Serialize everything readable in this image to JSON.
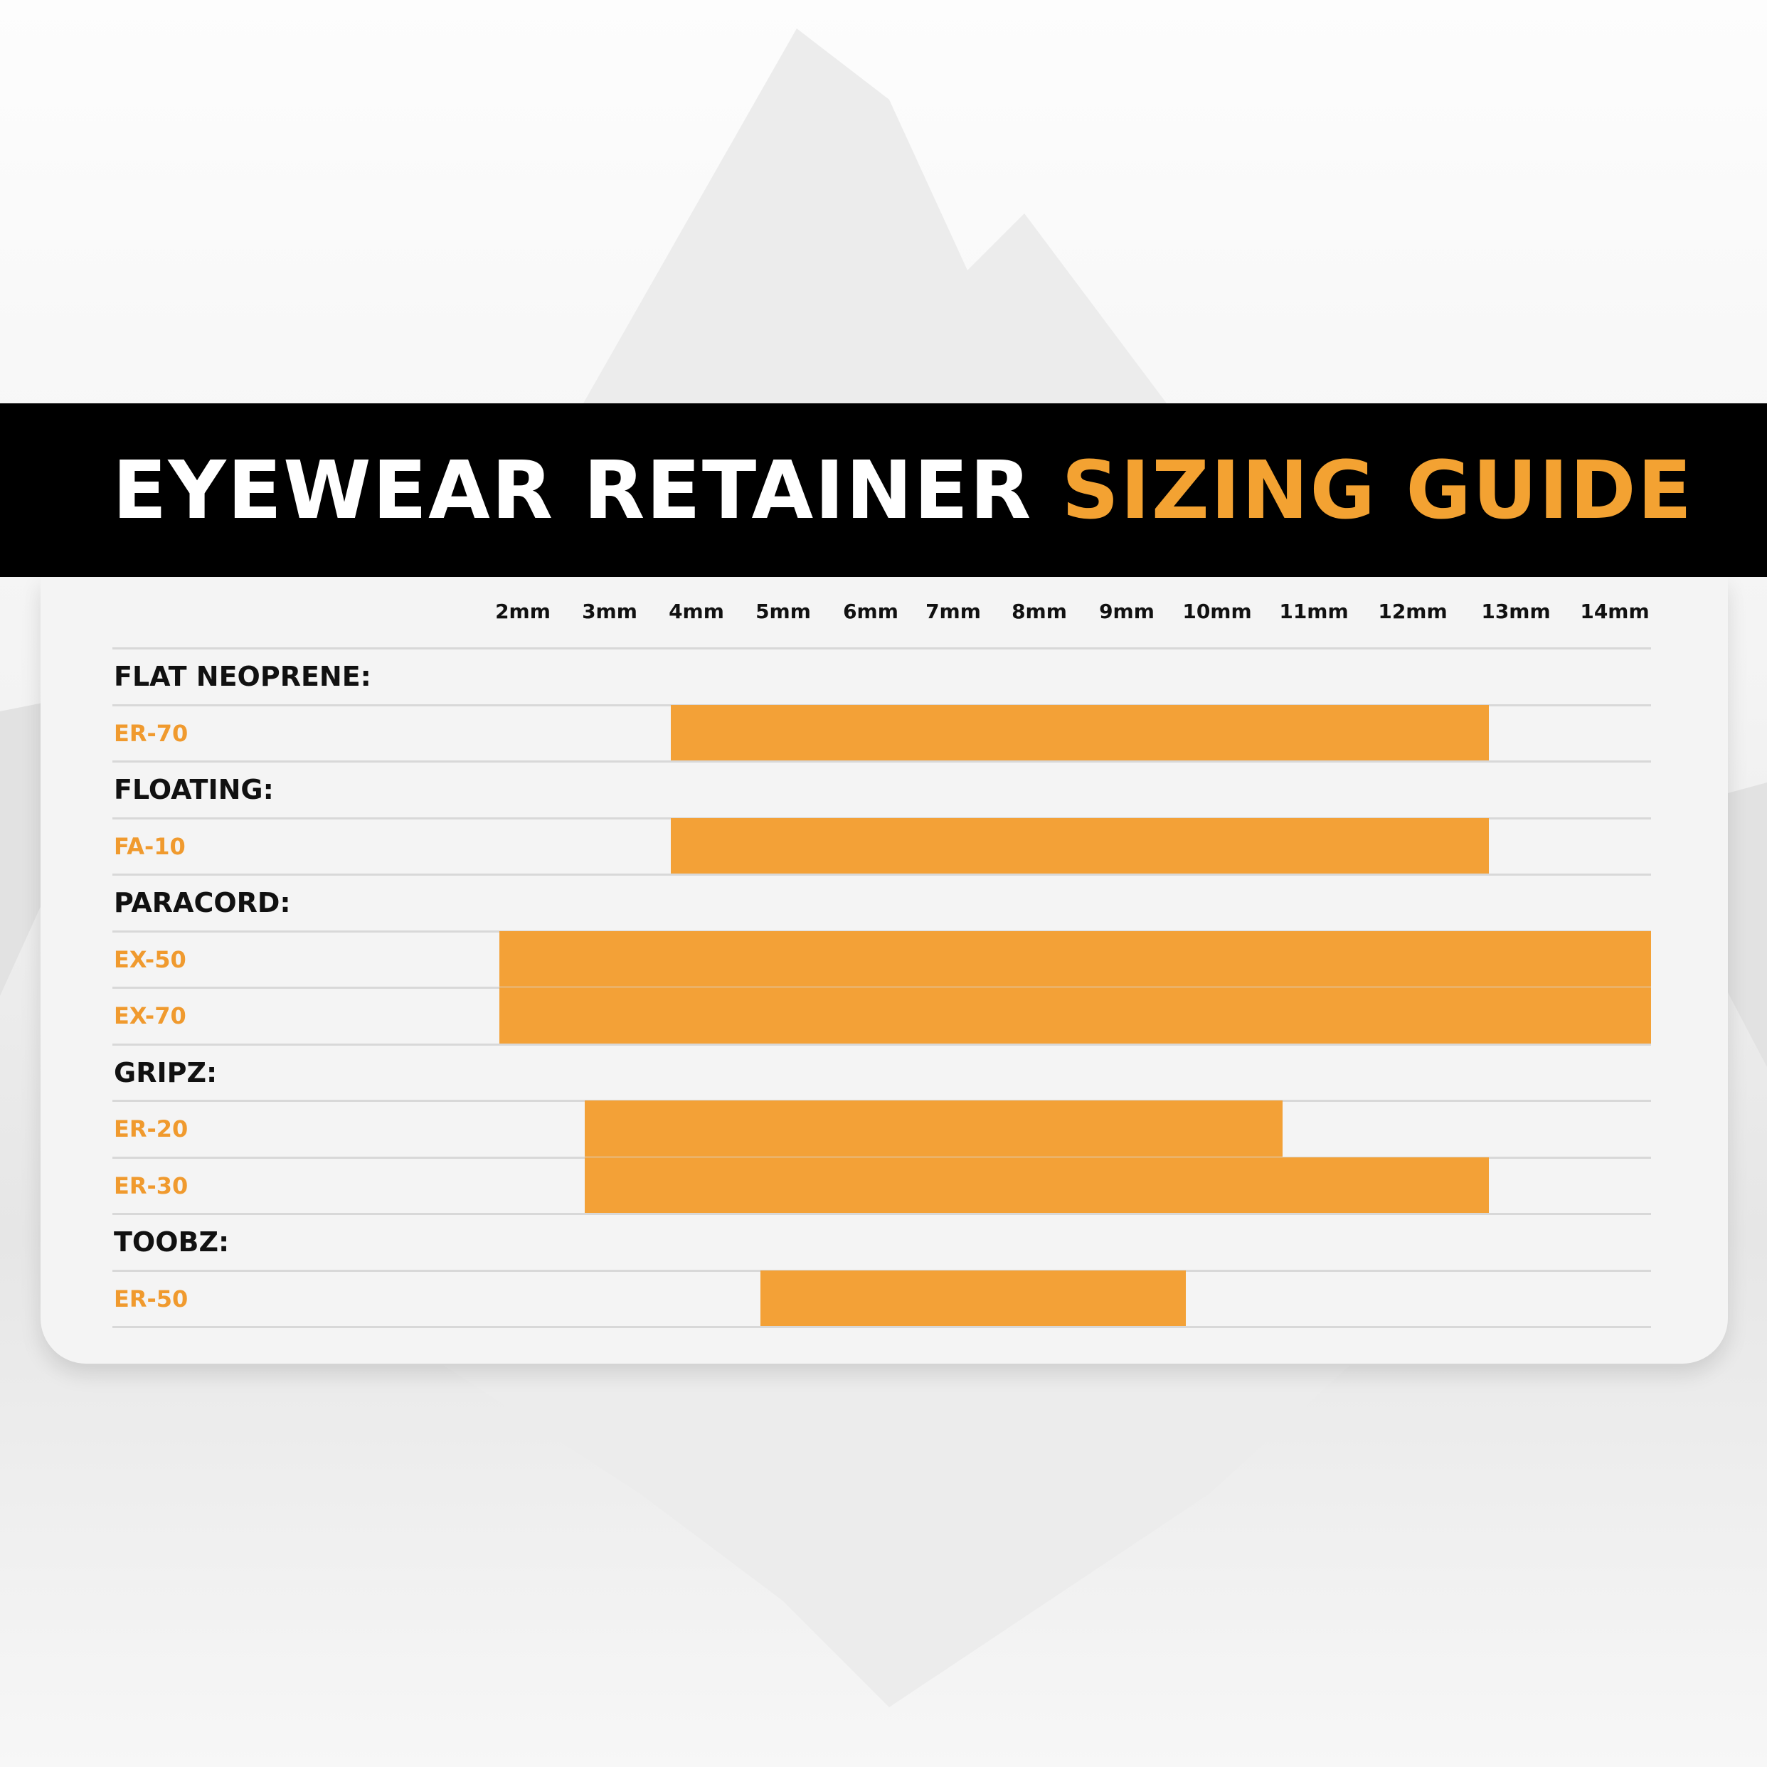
{
  "title": {
    "part1": "EYEWEAR RETAINER",
    "part2": "SIZING GUIDE"
  },
  "colors": {
    "accent": "#f3a137",
    "band": "#000000",
    "card": "#f4f4f4"
  },
  "chart_data": {
    "type": "bar",
    "orientation": "horizontal-range",
    "title": "EYEWEAR RETAINER SIZING GUIDE",
    "x_ticks": [
      "2mm",
      "3mm",
      "4mm",
      "5mm",
      "6mm",
      "7mm",
      "8mm",
      "9mm",
      "10mm",
      "11mm",
      "12mm",
      "13mm",
      "14mm"
    ],
    "x_unit": "mm",
    "xlim": [
      2,
      14
    ],
    "groups": [
      {
        "category": "FLAT NEOPRENE:",
        "models": [
          {
            "name": "ER-70",
            "min": 4,
            "max": 12
          }
        ]
      },
      {
        "category": "FLOATING:",
        "models": [
          {
            "name": "FA-10",
            "min": 4,
            "max": 12
          }
        ]
      },
      {
        "category": "PARACORD:",
        "models": [
          {
            "name": "EX-50",
            "min": 2,
            "max": 14
          },
          {
            "name": "EX-70",
            "min": 2,
            "max": 14
          }
        ]
      },
      {
        "category": "GRIPZ:",
        "models": [
          {
            "name": "ER-20",
            "min": 3,
            "max": 10
          },
          {
            "name": "ER-30",
            "min": 3,
            "max": 12
          }
        ]
      },
      {
        "category": "TOOBZ:",
        "models": [
          {
            "name": "ER-50",
            "min": 5,
            "max": 9
          }
        ]
      }
    ]
  }
}
